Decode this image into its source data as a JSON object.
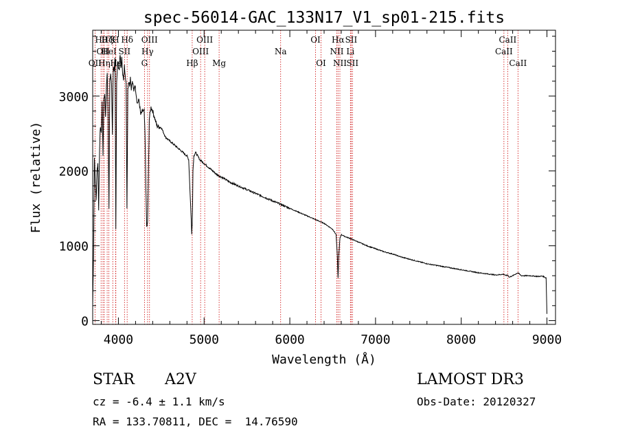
{
  "chart_data": {
    "type": "line",
    "title": "spec-56014-GAC_133N17_V1_sp01-215.fits",
    "xlabel": "Wavelength (Å)",
    "ylabel": "Flux (relative)",
    "xlim": [
      3700,
      9100
    ],
    "ylim": [
      -50,
      3880
    ],
    "xticks": [
      4000,
      5000,
      6000,
      7000,
      8000,
      9000
    ],
    "yticks": [
      0,
      1000,
      2000,
      3000
    ],
    "series": [
      {
        "name": "flux",
        "x": [
          3700,
          3710,
          3720,
          3730,
          3740,
          3750,
          3760,
          3770,
          3780,
          3790,
          3800,
          3810,
          3820,
          3830,
          3840,
          3850,
          3860,
          3870,
          3880,
          3890,
          3900,
          3910,
          3920,
          3930,
          3940,
          3950,
          3960,
          3970,
          3980,
          3990,
          4000,
          4010,
          4020,
          4030,
          4040,
          4050,
          4060,
          4070,
          4080,
          4090,
          4100,
          4110,
          4120,
          4130,
          4140,
          4150,
          4160,
          4170,
          4180,
          4190,
          4200,
          4220,
          4240,
          4260,
          4280,
          4300,
          4310,
          4320,
          4330,
          4340,
          4350,
          4360,
          4380,
          4400,
          4450,
          4500,
          4550,
          4600,
          4650,
          4700,
          4750,
          4800,
          4820,
          4840,
          4850,
          4855,
          4861,
          4866,
          4870,
          4880,
          4900,
          4950,
          5000,
          5050,
          5100,
          5150,
          5200,
          5300,
          5400,
          5500,
          5600,
          5700,
          5800,
          5900,
          6000,
          6100,
          6200,
          6300,
          6400,
          6500,
          6540,
          6555,
          6563,
          6570,
          6585,
          6600,
          6650,
          6700,
          6800,
          6900,
          7000,
          7100,
          7200,
          7300,
          7400,
          7500,
          7600,
          7700,
          7800,
          7900,
          8000,
          8100,
          8200,
          8300,
          8400,
          8498,
          8520,
          8542,
          8560,
          8600,
          8662,
          8700,
          8800,
          8900,
          8950,
          8990,
          9000
        ],
        "y": [
          200,
          900,
          2200,
          1850,
          1600,
          2000,
          2100,
          1500,
          2300,
          2600,
          2500,
          2900,
          2200,
          2950,
          3050,
          2700,
          3150,
          3300,
          2700,
          1500,
          3200,
          3300,
          3150,
          2500,
          3400,
          3300,
          3500,
          1250,
          3200,
          3450,
          3400,
          3350,
          3550,
          3380,
          3500,
          3300,
          3200,
          3400,
          3300,
          3150,
          1500,
          3100,
          3200,
          3150,
          3250,
          3100,
          3200,
          3150,
          3050,
          3150,
          3100,
          2900,
          2950,
          2750,
          2800,
          2800,
          2500,
          1800,
          1250,
          1300,
          1900,
          2700,
          2850,
          2800,
          2600,
          2580,
          2450,
          2400,
          2350,
          2300,
          2250,
          2200,
          2150,
          1600,
          1350,
          1150,
          1300,
          1600,
          2000,
          2200,
          2250,
          2150,
          2100,
          2050,
          2000,
          1950,
          1920,
          1850,
          1800,
          1750,
          1700,
          1650,
          1600,
          1550,
          1500,
          1450,
          1400,
          1350,
          1300,
          1220,
          1150,
          850,
          570,
          850,
          1100,
          1150,
          1120,
          1100,
          1050,
          1000,
          960,
          920,
          890,
          850,
          820,
          790,
          760,
          740,
          720,
          700,
          680,
          660,
          640,
          625,
          610,
          620,
          600,
          610,
          580,
          600,
          640,
          600,
          600,
          590,
          595,
          570,
          90
        ]
      }
    ],
    "line_markers": [
      {
        "wl": 3727,
        "label": "OII",
        "row": 3
      },
      {
        "wl": 3798,
        "label": "Hθ",
        "row": 1
      },
      {
        "wl": 3820,
        "label": "OII",
        "row": 2
      },
      {
        "wl": 3835,
        "label": "Hη",
        "row": 3
      },
      {
        "wl": 3869,
        "label": "Hζ",
        "row": 1
      },
      {
        "wl": 3889,
        "label": "HeI",
        "row": 2
      },
      {
        "wl": 3934,
        "label": "K",
        "row": 1
      },
      {
        "wl": 3968,
        "label": "H",
        "row": 1
      },
      {
        "wl": 3970,
        "label": "Hε",
        "row": 3
      },
      {
        "wl": 4071,
        "label": "SII",
        "row": 2
      },
      {
        "wl": 4102,
        "label": "Hδ",
        "row": 1
      },
      {
        "wl": 4304,
        "label": "G",
        "row": 3
      },
      {
        "wl": 4340,
        "label": "Hγ",
        "row": 2
      },
      {
        "wl": 4363,
        "label": "OIII",
        "row": 1
      },
      {
        "wl": 4861,
        "label": "Hβ",
        "row": 3
      },
      {
        "wl": 4959,
        "label": "OIII",
        "row": 2
      },
      {
        "wl": 5007,
        "label": "OIII",
        "row": 1
      },
      {
        "wl": 5175,
        "label": "Mg",
        "row": 3
      },
      {
        "wl": 5893,
        "label": "Na",
        "row": 2
      },
      {
        "wl": 6300,
        "label": "OI",
        "row": 1
      },
      {
        "wl": 6364,
        "label": "OI",
        "row": 3
      },
      {
        "wl": 6548,
        "label": "NII",
        "row": 2
      },
      {
        "wl": 6563,
        "label": "Hα",
        "row": 1
      },
      {
        "wl": 6584,
        "label": "NII",
        "row": 3
      },
      {
        "wl": 6707,
        "label": "Li",
        "row": 2
      },
      {
        "wl": 6716,
        "label": "SII",
        "row": 1
      },
      {
        "wl": 6731,
        "label": "SII",
        "row": 3
      },
      {
        "wl": 8498,
        "label": "CaII",
        "row": 2
      },
      {
        "wl": 8542,
        "label": "CaII",
        "row": 1
      },
      {
        "wl": 8662,
        "label": "CaII",
        "row": 3
      }
    ]
  },
  "info": {
    "class": "STAR",
    "subclass": "A2V",
    "survey": "LAMOST DR3",
    "cz": "cz = -6.4 ± 1.1 km/s",
    "obs_date": "Obs-Date: 20120327",
    "coords": "RA = 133.70811, DEC =  14.76590"
  },
  "colors": {
    "spectrum": "#000000",
    "marker": "#cc0000"
  }
}
